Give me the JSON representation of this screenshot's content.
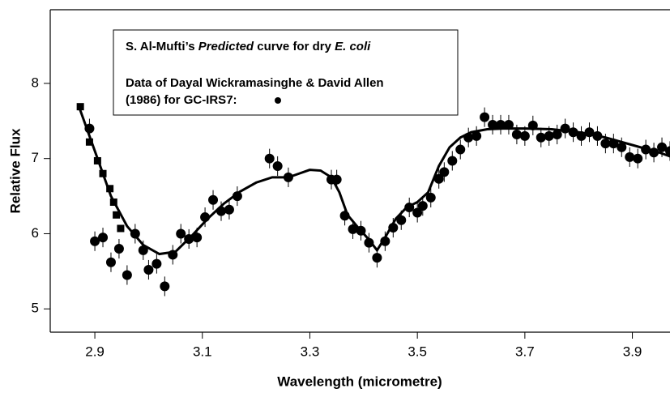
{
  "chart_data": {
    "type": "scatter",
    "xlabel": "Wavelength (micrometre)",
    "ylabel": "Relative Flux",
    "xlim": [
      2.817,
      3.97
    ],
    "ylim": [
      4.69,
      8.98
    ],
    "xticks": [
      2.9,
      3.1,
      3.3,
      3.5,
      3.7,
      3.9
    ],
    "yticks": [
      5,
      6,
      7,
      8
    ],
    "annotations": [
      [
        "S. Al-Mufti’s ",
        "Predicted",
        " curve for dry ",
        "E. coli"
      ],
      [
        "Data of Dayal Wickramasinghe & David Allen"
      ],
      [
        "(1986) for GC-IRS7:"
      ]
    ],
    "series": [
      {
        "marker": "circle",
        "color": "#000000",
        "x": [
          2.89,
          2.9,
          2.915,
          2.93,
          2.945,
          2.96,
          2.975,
          2.99,
          3.0,
          3.015,
          3.03,
          3.045,
          3.06,
          3.075,
          3.09,
          3.105,
          3.12,
          3.135,
          3.15,
          3.165,
          3.225,
          3.24,
          3.26,
          3.34,
          3.35,
          3.365,
          3.38,
          3.395,
          3.41,
          3.425,
          3.44,
          3.455,
          3.47,
          3.485,
          3.5,
          3.51,
          3.525,
          3.54,
          3.55,
          3.565,
          3.58,
          3.595,
          3.61,
          3.625,
          3.64,
          3.655,
          3.67,
          3.685,
          3.7,
          3.715,
          3.73,
          3.745,
          3.76,
          3.775,
          3.79,
          3.805,
          3.82,
          3.835,
          3.85,
          3.865,
          3.88,
          3.895,
          3.91,
          3.925,
          3.94,
          3.955,
          3.97
        ],
        "values": [
          7.4,
          5.9,
          5.95,
          5.62,
          5.8,
          5.45,
          6.0,
          5.78,
          5.52,
          5.6,
          5.3,
          5.72,
          6.0,
          5.93,
          5.95,
          6.22,
          6.45,
          6.3,
          6.32,
          6.5,
          7.0,
          6.9,
          6.75,
          6.72,
          6.72,
          6.24,
          6.06,
          6.04,
          5.88,
          5.68,
          5.9,
          6.08,
          6.18,
          6.35,
          6.28,
          6.37,
          6.48,
          6.73,
          6.82,
          6.97,
          7.12,
          7.28,
          7.3,
          7.55,
          7.45,
          7.45,
          7.45,
          7.32,
          7.3,
          7.44,
          7.28,
          7.3,
          7.32,
          7.4,
          7.35,
          7.3,
          7.35,
          7.3,
          7.2,
          7.2,
          7.15,
          7.02,
          7.0,
          7.12,
          7.08,
          7.15,
          7.1
        ],
        "errors": [
          0.13,
          0.13,
          0.13,
          0.13,
          0.13,
          0.13,
          0.13,
          0.13,
          0.13,
          0.13,
          0.13,
          0.13,
          0.13,
          0.13,
          0.13,
          0.13,
          0.13,
          0.13,
          0.13,
          0.13,
          0.13,
          0.13,
          0.13,
          0.13,
          0.13,
          0.13,
          0.13,
          0.13,
          0.13,
          0.13,
          0.13,
          0.13,
          0.13,
          0.13,
          0.13,
          0.13,
          0.13,
          0.13,
          0.13,
          0.13,
          0.13,
          0.13,
          0.13,
          0.13,
          0.13,
          0.13,
          0.13,
          0.13,
          0.13,
          0.13,
          0.13,
          0.13,
          0.13,
          0.13,
          0.13,
          0.13,
          0.13,
          0.13,
          0.13,
          0.13,
          0.13,
          0.13,
          0.13,
          0.13,
          0.13,
          0.13,
          0.13
        ]
      },
      {
        "marker": "square",
        "color": "#000000",
        "x": [
          2.873,
          2.89,
          2.905,
          2.915,
          2.928,
          2.935,
          2.94,
          2.948
        ],
        "values": [
          7.69,
          7.22,
          6.97,
          6.8,
          6.6,
          6.42,
          6.25,
          6.07
        ]
      },
      {
        "marker": "line",
        "color": "#000000",
        "x": [
          2.87,
          2.9,
          2.93,
          2.96,
          2.99,
          3.02,
          3.05,
          3.08,
          3.11,
          3.14,
          3.17,
          3.2,
          3.23,
          3.26,
          3.28,
          3.3,
          3.32,
          3.34,
          3.355,
          3.37,
          3.39,
          3.41,
          3.425,
          3.44,
          3.46,
          3.48,
          3.5,
          3.52,
          3.54,
          3.56,
          3.58,
          3.6,
          3.63,
          3.66,
          3.7,
          3.75,
          3.8,
          3.85,
          3.9,
          3.95,
          3.97
        ],
        "values": [
          7.7,
          7.1,
          6.5,
          6.1,
          5.85,
          5.73,
          5.76,
          5.97,
          6.2,
          6.4,
          6.56,
          6.68,
          6.75,
          6.75,
          6.8,
          6.85,
          6.84,
          6.75,
          6.55,
          6.25,
          6.08,
          5.92,
          5.78,
          5.95,
          6.2,
          6.35,
          6.42,
          6.55,
          6.9,
          7.15,
          7.28,
          7.35,
          7.39,
          7.4,
          7.4,
          7.39,
          7.35,
          7.28,
          7.18,
          7.08,
          7.03
        ]
      }
    ]
  }
}
